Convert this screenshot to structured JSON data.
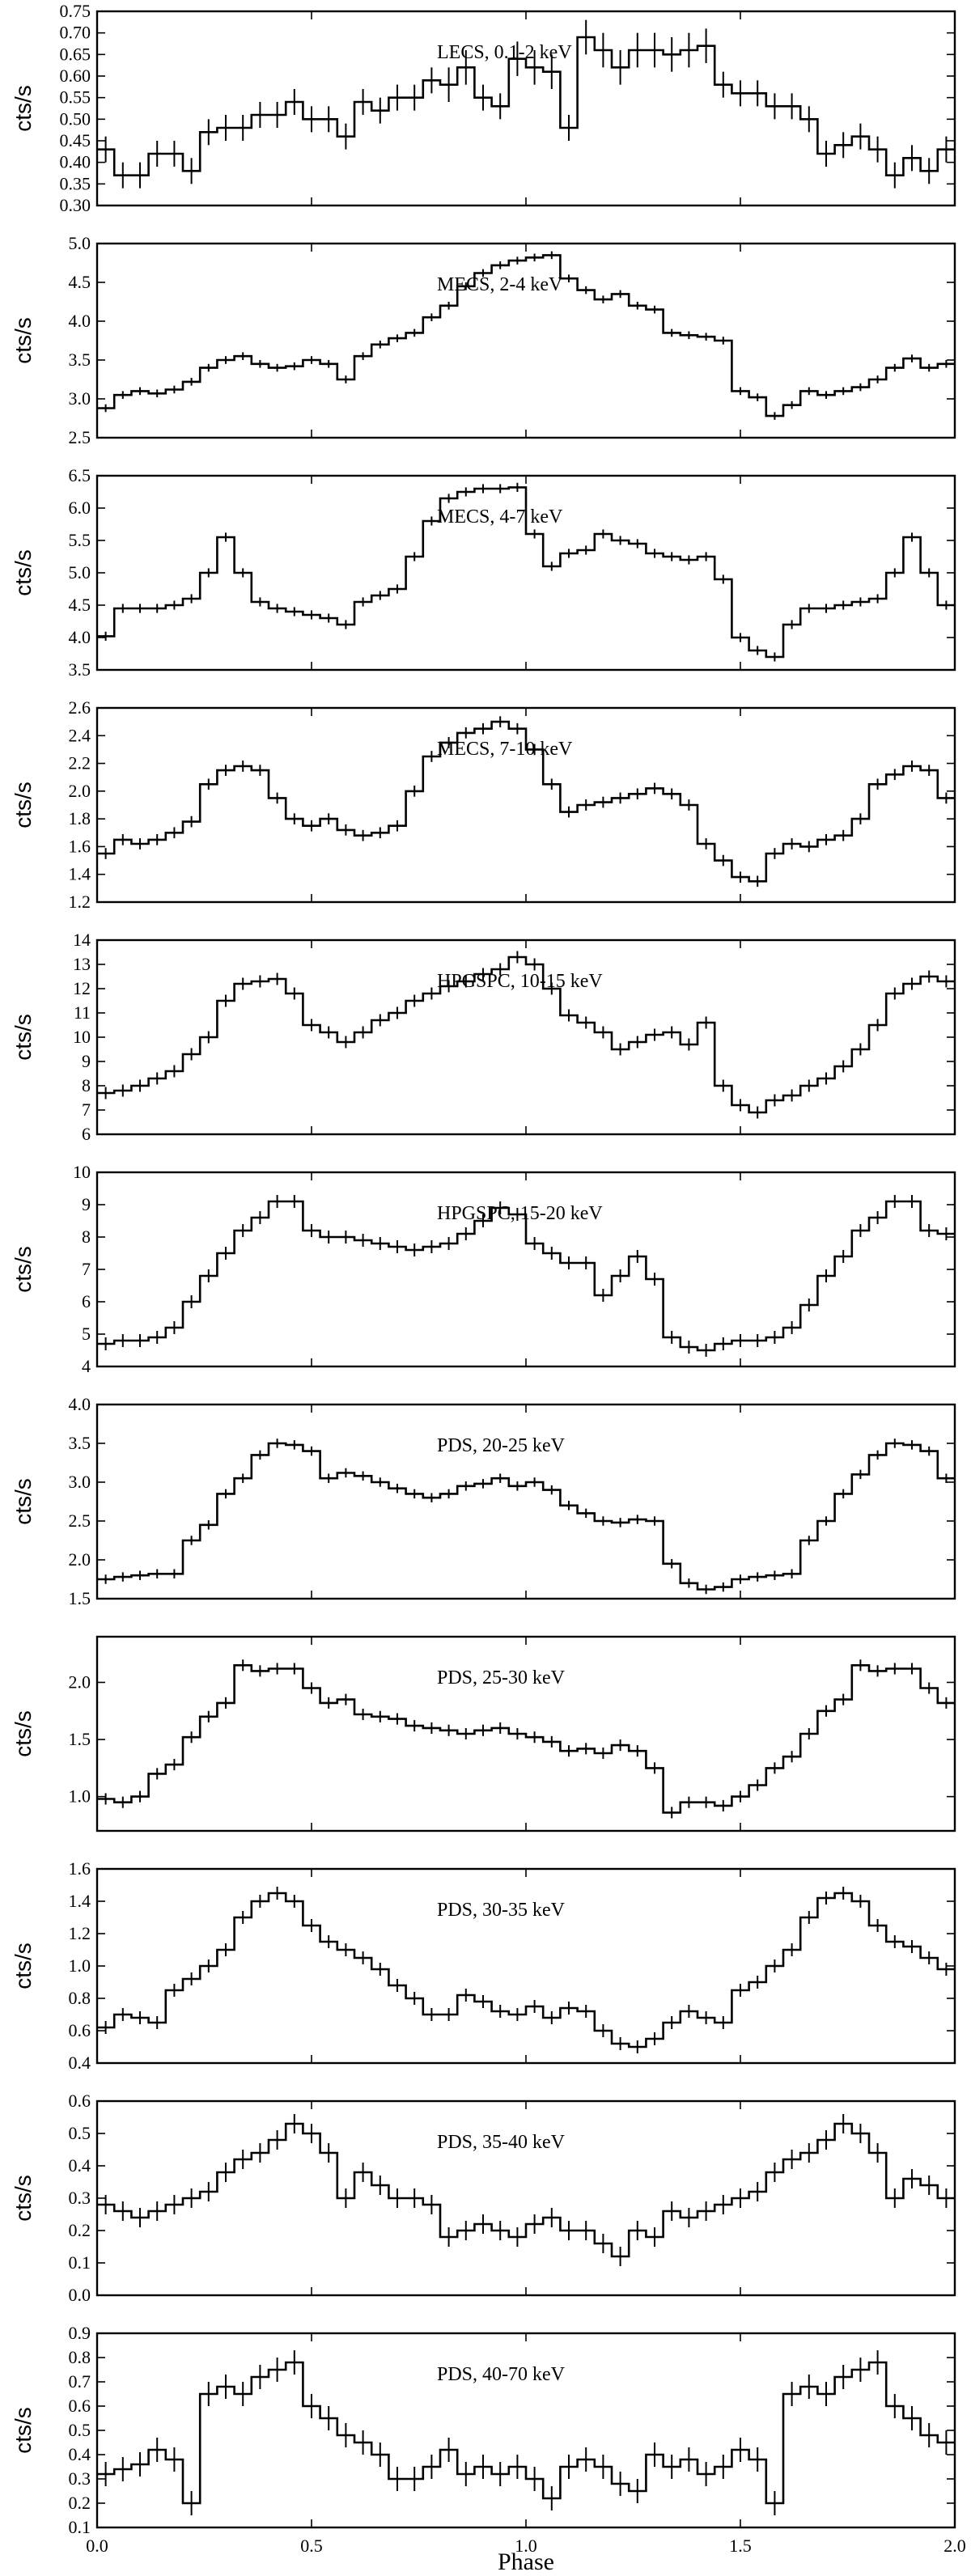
{
  "figure": {
    "xlabel": "Phase",
    "ylabel": "cts/s",
    "xlim": [
      0.0,
      2.0
    ],
    "xticks": [
      "0.0",
      "0.5",
      "1.0",
      "1.5",
      "2.0"
    ]
  },
  "chart_data": [
    {
      "type": "line",
      "label": "LECS, 0.1-2 keV",
      "ylim": [
        0.3,
        0.75
      ],
      "yticks": [
        "0.30",
        "0.35",
        "0.40",
        "0.45",
        "0.50",
        "0.55",
        "0.60",
        "0.65",
        "0.70",
        "0.75"
      ],
      "values": [
        0.43,
        0.37,
        0.37,
        0.42,
        0.42,
        0.38,
        0.47,
        0.48,
        0.48,
        0.51,
        0.51,
        0.54,
        0.5,
        0.5,
        0.46,
        0.54,
        0.52,
        0.55,
        0.55,
        0.59,
        0.58,
        0.62,
        0.55,
        0.53,
        0.64,
        0.62,
        0.61,
        0.48,
        0.69,
        0.66,
        0.62,
        0.66,
        0.66,
        0.65,
        0.66,
        0.67,
        0.58,
        0.56,
        0.56,
        0.53,
        0.53,
        0.5,
        0.42,
        0.44,
        0.46,
        0.43,
        0.37,
        0.41,
        0.38,
        0.43
      ],
      "errors": [
        0.03,
        0.03,
        0.03,
        0.03,
        0.03,
        0.03,
        0.03,
        0.03,
        0.03,
        0.03,
        0.03,
        0.03,
        0.03,
        0.03,
        0.03,
        0.03,
        0.03,
        0.03,
        0.03,
        0.03,
        0.04,
        0.04,
        0.03,
        0.03,
        0.04,
        0.04,
        0.04,
        0.03,
        0.04,
        0.04,
        0.04,
        0.04,
        0.04,
        0.04,
        0.04,
        0.04,
        0.03,
        0.03,
        0.03,
        0.03,
        0.03,
        0.03,
        0.03,
        0.03,
        0.03,
        0.03,
        0.03,
        0.03,
        0.03,
        0.03
      ]
    },
    {
      "type": "line",
      "label": "MECS, 2-4 keV",
      "ylim": [
        2.5,
        5.0
      ],
      "yticks": [
        "2.5",
        "3.0",
        "3.5",
        "4.0",
        "4.5",
        "5.0"
      ],
      "values": [
        2.88,
        3.05,
        3.1,
        3.07,
        3.12,
        3.22,
        3.4,
        3.5,
        3.55,
        3.45,
        3.4,
        3.42,
        3.5,
        3.45,
        3.25,
        3.55,
        3.7,
        3.78,
        3.85,
        4.05,
        4.2,
        4.45,
        4.62,
        4.72,
        4.78,
        4.82,
        4.85,
        4.55,
        4.4,
        4.28,
        4.35,
        4.2,
        4.15,
        3.85,
        3.82,
        3.8,
        3.75,
        3.1,
        3.02,
        2.78,
        2.92,
        3.1,
        3.05,
        3.1,
        3.15,
        3.25,
        3.4,
        3.52,
        3.4,
        3.45
      ],
      "errors": 0.05
    },
    {
      "type": "line",
      "label": "MECS, 4-7 keV",
      "ylim": [
        3.5,
        6.5
      ],
      "yticks": [
        "3.5",
        "4.0",
        "4.5",
        "5.0",
        "5.5",
        "6.0",
        "6.5"
      ],
      "values": [
        4.02,
        4.45,
        4.45,
        4.45,
        4.5,
        4.6,
        5.0,
        5.55,
        5.0,
        4.55,
        4.45,
        4.4,
        4.35,
        4.3,
        4.2,
        4.55,
        4.65,
        4.75,
        5.25,
        5.8,
        6.15,
        6.25,
        6.3,
        6.3,
        6.32,
        5.6,
        5.1,
        5.3,
        5.35,
        5.6,
        5.5,
        5.45,
        5.3,
        5.25,
        5.2,
        5.25,
        4.9,
        4.0,
        3.8,
        3.7,
        4.2,
        4.45,
        4.45,
        4.5,
        4.55,
        4.6,
        5.0,
        5.55,
        5.0,
        4.5
      ],
      "errors": 0.07
    },
    {
      "type": "line",
      "label": "MECS, 7-10 keV",
      "ylim": [
        1.2,
        2.6
      ],
      "yticks": [
        "1.2",
        "1.4",
        "1.6",
        "1.8",
        "2.0",
        "2.2",
        "2.4",
        "2.6"
      ],
      "values": [
        1.55,
        1.65,
        1.62,
        1.65,
        1.7,
        1.78,
        2.05,
        2.15,
        2.18,
        2.15,
        1.95,
        1.8,
        1.75,
        1.8,
        1.72,
        1.68,
        1.7,
        1.75,
        2.0,
        2.25,
        2.35,
        2.42,
        2.45,
        2.5,
        2.45,
        2.3,
        2.05,
        1.85,
        1.9,
        1.92,
        1.95,
        1.98,
        2.02,
        1.98,
        1.9,
        1.62,
        1.5,
        1.38,
        1.35,
        1.55,
        1.62,
        1.6,
        1.65,
        1.68,
        1.8,
        2.05,
        2.12,
        2.18,
        2.15,
        1.95
      ],
      "errors": 0.04
    },
    {
      "type": "line",
      "label": "HPGSPC, 10-15 keV",
      "ylim": [
        6,
        14
      ],
      "yticks": [
        "6",
        "7",
        "8",
        "9",
        "10",
        "11",
        "12",
        "13",
        "14"
      ],
      "values": [
        7.7,
        7.8,
        8.0,
        8.3,
        8.6,
        9.3,
        10.0,
        11.5,
        12.2,
        12.3,
        12.4,
        11.8,
        10.5,
        10.2,
        9.8,
        10.2,
        10.7,
        11.0,
        11.5,
        11.8,
        12.1,
        12.3,
        12.6,
        12.8,
        13.3,
        13.0,
        12.0,
        10.9,
        10.6,
        10.2,
        9.5,
        9.8,
        10.1,
        10.2,
        9.7,
        10.6,
        8.0,
        7.2,
        6.9,
        7.4,
        7.6,
        8.0,
        8.3,
        8.8,
        9.5,
        10.5,
        11.8,
        12.2,
        12.5,
        12.3
      ],
      "errors": 0.25
    },
    {
      "type": "line",
      "label": "HPGSPC, 15-20 keV",
      "ylim": [
        4,
        10
      ],
      "yticks": [
        "4",
        "5",
        "6",
        "7",
        "8",
        "9",
        "10"
      ],
      "values": [
        4.7,
        4.8,
        4.8,
        4.9,
        5.2,
        6.0,
        6.8,
        7.5,
        8.2,
        8.6,
        9.1,
        9.1,
        8.2,
        8.0,
        8.0,
        7.9,
        7.8,
        7.7,
        7.6,
        7.7,
        7.8,
        8.1,
        8.5,
        8.9,
        8.7,
        7.8,
        7.5,
        7.2,
        7.2,
        6.2,
        6.8,
        7.4,
        6.7,
        4.9,
        4.6,
        4.5,
        4.7,
        4.8,
        4.8,
        4.9,
        5.2,
        5.9,
        6.8,
        7.4,
        8.2,
        8.6,
        9.1,
        9.1,
        8.2,
        8.1
      ],
      "errors": 0.2
    },
    {
      "type": "line",
      "label": "PDS, 20-25 keV",
      "ylim": [
        1.5,
        4.0
      ],
      "yticks": [
        "1.5",
        "2.0",
        "2.5",
        "3.0",
        "3.5",
        "4.0"
      ],
      "values": [
        1.75,
        1.78,
        1.8,
        1.82,
        1.82,
        2.25,
        2.45,
        2.85,
        3.05,
        3.35,
        3.5,
        3.48,
        3.4,
        3.05,
        3.12,
        3.08,
        3.0,
        2.92,
        2.85,
        2.8,
        2.85,
        2.95,
        2.98,
        3.05,
        2.95,
        3.0,
        2.9,
        2.7,
        2.6,
        2.5,
        2.48,
        2.52,
        2.5,
        1.95,
        1.7,
        1.62,
        1.65,
        1.75,
        1.78,
        1.8,
        1.82,
        2.25,
        2.5,
        2.85,
        3.1,
        3.35,
        3.5,
        3.48,
        3.4,
        3.05
      ],
      "errors": 0.06
    },
    {
      "type": "line",
      "label": "PDS, 25-30 keV",
      "ylim": [
        0.7,
        2.4
      ],
      "yticks": [
        "1.0",
        "1.5",
        "2.0"
      ],
      "values": [
        0.98,
        0.95,
        1.0,
        1.2,
        1.28,
        1.52,
        1.7,
        1.82,
        2.15,
        2.1,
        2.12,
        2.12,
        1.95,
        1.82,
        1.85,
        1.72,
        1.7,
        1.68,
        1.62,
        1.6,
        1.58,
        1.55,
        1.58,
        1.6,
        1.55,
        1.52,
        1.48,
        1.4,
        1.42,
        1.38,
        1.45,
        1.4,
        1.25,
        0.86,
        0.95,
        0.95,
        0.92,
        1.0,
        1.1,
        1.25,
        1.35,
        1.55,
        1.75,
        1.85,
        2.15,
        2.1,
        2.12,
        2.12,
        1.95,
        1.82
      ],
      "errors": 0.05
    },
    {
      "type": "line",
      "label": "PDS, 30-35 keV",
      "ylim": [
        0.4,
        1.6
      ],
      "yticks": [
        "0.4",
        "0.6",
        "0.8",
        "1.0",
        "1.2",
        "1.4",
        "1.6"
      ],
      "values": [
        0.62,
        0.7,
        0.68,
        0.65,
        0.85,
        0.92,
        1.0,
        1.1,
        1.3,
        1.4,
        1.45,
        1.4,
        1.25,
        1.15,
        1.1,
        1.05,
        0.98,
        0.88,
        0.8,
        0.7,
        0.7,
        0.82,
        0.78,
        0.72,
        0.7,
        0.75,
        0.68,
        0.74,
        0.72,
        0.6,
        0.52,
        0.5,
        0.55,
        0.65,
        0.72,
        0.68,
        0.65,
        0.85,
        0.9,
        1.0,
        1.1,
        1.3,
        1.42,
        1.45,
        1.4,
        1.25,
        1.15,
        1.12,
        1.05,
        0.98
      ],
      "errors": 0.04
    },
    {
      "type": "line",
      "label": "PDS, 35-40 keV",
      "ylim": [
        0.0,
        0.6
      ],
      "yticks": [
        "0.0",
        "0.1",
        "0.2",
        "0.3",
        "0.4",
        "0.5",
        "0.6"
      ],
      "values": [
        0.28,
        0.26,
        0.24,
        0.26,
        0.28,
        0.3,
        0.32,
        0.38,
        0.42,
        0.44,
        0.48,
        0.53,
        0.5,
        0.44,
        0.3,
        0.38,
        0.34,
        0.3,
        0.3,
        0.28,
        0.18,
        0.2,
        0.22,
        0.2,
        0.18,
        0.22,
        0.24,
        0.2,
        0.2,
        0.16,
        0.12,
        0.2,
        0.18,
        0.26,
        0.24,
        0.26,
        0.28,
        0.3,
        0.32,
        0.38,
        0.42,
        0.44,
        0.48,
        0.53,
        0.5,
        0.44,
        0.3,
        0.36,
        0.34,
        0.3
      ],
      "errors": 0.03
    },
    {
      "type": "line",
      "label": "PDS, 40-70 keV",
      "ylim": [
        0.1,
        0.9
      ],
      "yticks": [
        "0.1",
        "0.2",
        "0.3",
        "0.4",
        "0.5",
        "0.6",
        "0.7",
        "0.8",
        "0.9"
      ],
      "values": [
        0.32,
        0.34,
        0.36,
        0.42,
        0.38,
        0.2,
        0.65,
        0.68,
        0.65,
        0.72,
        0.75,
        0.78,
        0.6,
        0.55,
        0.48,
        0.45,
        0.4,
        0.3,
        0.3,
        0.35,
        0.42,
        0.32,
        0.35,
        0.32,
        0.35,
        0.3,
        0.22,
        0.35,
        0.38,
        0.35,
        0.28,
        0.25,
        0.4,
        0.35,
        0.38,
        0.32,
        0.35,
        0.42,
        0.38,
        0.2,
        0.65,
        0.68,
        0.65,
        0.72,
        0.75,
        0.78,
        0.6,
        0.55,
        0.48,
        0.45
      ],
      "errors": 0.05
    }
  ]
}
